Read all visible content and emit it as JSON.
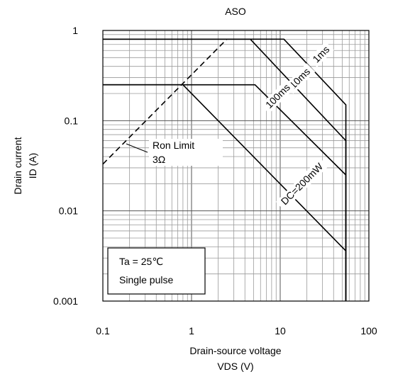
{
  "chart_data": {
    "type": "line",
    "title": "ASO",
    "xlabel": "Drain-source voltage",
    "xlabel_unit": "VDS (V)",
    "ylabel": "Drain current",
    "ylabel_unit": "ID (A)",
    "xscale": "log",
    "yscale": "log",
    "xlim": [
      0.1,
      100
    ],
    "ylim": [
      0.001,
      1
    ],
    "grid": true,
    "x_tick_labels": [
      "0.1",
      "1",
      "10",
      "100"
    ],
    "y_tick_labels": [
      "0.001",
      "0.01",
      "0.1",
      "1"
    ],
    "x_ticks": [
      0.1,
      1,
      10,
      100
    ],
    "y_ticks": [
      0.001,
      0.01,
      0.1,
      1
    ],
    "series": [
      {
        "name": "1ms",
        "style": "solid",
        "x": [
          0.1,
          11,
          55,
          55
        ],
        "y": [
          0.8,
          0.8,
          0.15,
          0.001
        ]
      },
      {
        "name": "10ms",
        "style": "solid",
        "x": [
          0.1,
          4.6,
          55,
          55
        ],
        "y": [
          0.8,
          0.8,
          0.06,
          0.001
        ]
      },
      {
        "name": "100ms",
        "style": "solid",
        "x": [
          0.1,
          5.2,
          55,
          55
        ],
        "y": [
          0.25,
          0.25,
          0.025,
          0.001
        ]
      },
      {
        "name": "DC=200mW",
        "style": "solid",
        "x": [
          0.1,
          0.8,
          55,
          55
        ],
        "y": [
          0.25,
          0.25,
          0.0036,
          0.001
        ]
      },
      {
        "name": "Ron Limit",
        "style": "dashed",
        "x": [
          0.1,
          2.5
        ],
        "y": [
          0.033,
          0.8
        ]
      }
    ],
    "annotations": [
      {
        "text": "1ms"
      },
      {
        "text": "10ms"
      },
      {
        "text": "100ms"
      },
      {
        "text": "DC=200mW"
      },
      {
        "text": "Ron Limit"
      },
      {
        "text": "3Ω"
      }
    ],
    "legend_box": {
      "line1": "Ta = 25℃",
      "line2": "Single pulse"
    }
  }
}
